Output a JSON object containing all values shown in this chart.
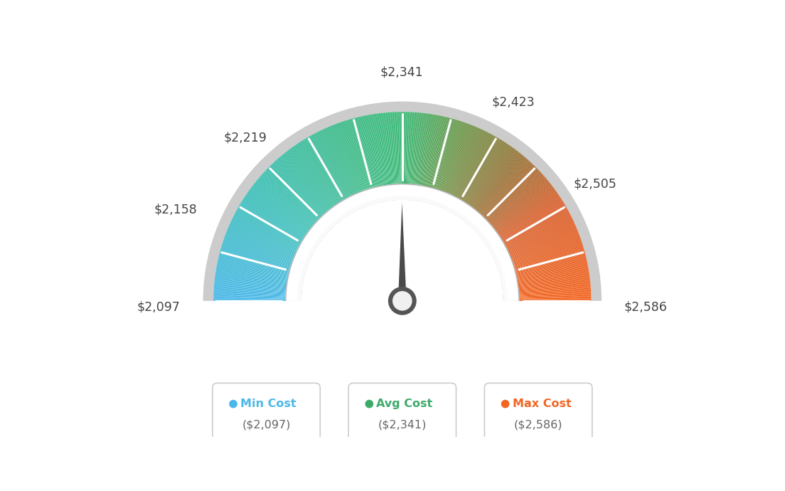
{
  "min_val": 2097,
  "max_val": 2586,
  "avg_val": 2341,
  "label_data": [
    [
      2097,
      "$2,097"
    ],
    [
      2158,
      "$2,158"
    ],
    [
      2219,
      "$2,219"
    ],
    [
      2341,
      "$2,341"
    ],
    [
      2423,
      "$2,423"
    ],
    [
      2505,
      "$2,505"
    ],
    [
      2586,
      "$2,586"
    ]
  ],
  "min_label": "Min Cost",
  "avg_label": "Avg Cost",
  "max_label": "Max Cost",
  "min_cost_display": "($2,097)",
  "avg_cost_display": "($2,341)",
  "max_cost_display": "($2,586)",
  "min_color": "#4ab8e8",
  "avg_color": "#3daa6a",
  "max_color": "#f26522",
  "background_color": "#ffffff",
  "color_stops": [
    [
      0.0,
      [
        0.29,
        0.72,
        0.91
      ]
    ],
    [
      0.2,
      [
        0.24,
        0.75,
        0.72
      ]
    ],
    [
      0.4,
      [
        0.24,
        0.73,
        0.53
      ]
    ],
    [
      0.5,
      [
        0.24,
        0.73,
        0.47
      ]
    ],
    [
      0.6,
      [
        0.42,
        0.6,
        0.3
      ]
    ],
    [
      0.72,
      [
        0.6,
        0.45,
        0.22
      ]
    ],
    [
      0.82,
      [
        0.85,
        0.38,
        0.18
      ]
    ],
    [
      1.0,
      [
        0.95,
        0.4,
        0.13
      ]
    ]
  ]
}
